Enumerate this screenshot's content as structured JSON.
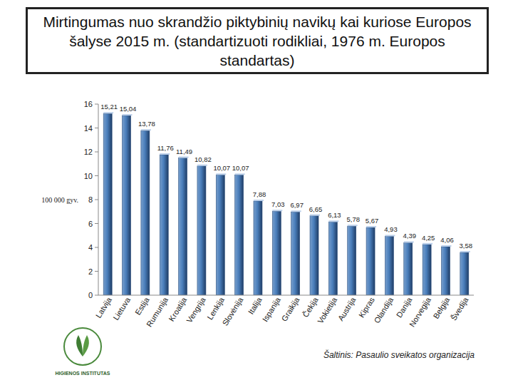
{
  "chart_data": {
    "type": "bar",
    "title": "Mirtingumas nuo skrandžio piktybinių navikų kai kuriose Europos šalyse 2015 m. (standartizuoti rodikliai, 1976 m. Europos standartas)",
    "y_label": "100 000 gyv.",
    "source": "Šaltinis: Pasaulio sveikatos organizacija",
    "logo_text": "HIGIENOS INSTITUTAS",
    "categories": [
      "Latvija",
      "Lietuva",
      "Estija",
      "Rumunija",
      "Kroatija",
      "Vengrija",
      "Lenkija",
      "Slovėnija",
      "Italija",
      "Ispanija",
      "Graikija",
      "Čekija",
      "Vokietija",
      "Austrija",
      "Kipras",
      "Olandija",
      "Danija",
      "Norvegija",
      "Belgija",
      "Švedija"
    ],
    "values": [
      15.21,
      15.04,
      13.78,
      11.76,
      11.49,
      10.82,
      10.07,
      10.07,
      7.88,
      7.03,
      6.97,
      6.65,
      6.13,
      5.78,
      5.67,
      4.93,
      4.39,
      4.25,
      4.06,
      3.58
    ],
    "value_labels": [
      "15,21",
      "15,04",
      "13,78",
      "11,76",
      "11,49",
      "10,82",
      "10,07",
      "10,07",
      "7,88",
      "7,03",
      "6,97",
      "6,65",
      "6,13",
      "5,78",
      "5,67",
      "4,93",
      "4,39",
      "4,25",
      "4,06",
      "3,58"
    ],
    "color": "#4a7ebb",
    "ylim": [
      0,
      16
    ],
    "yticks": [
      0,
      2,
      4,
      6,
      8,
      10,
      12,
      14,
      16
    ],
    "grid": false,
    "data_labels": true
  }
}
